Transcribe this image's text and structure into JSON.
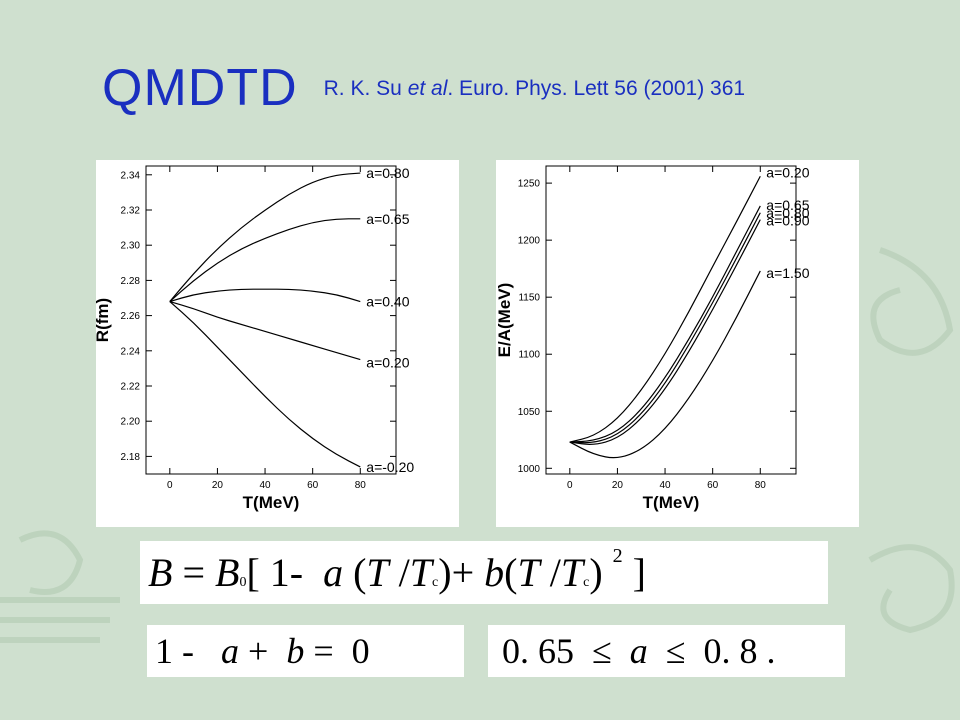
{
  "slide": {
    "title": "QMDTD",
    "reference": {
      "authors": "R. K. Su",
      "etal": "et al",
      "journal": ". Euro. Phys. Lett 56 (2001) 361"
    }
  },
  "chart_data": [
    {
      "type": "line",
      "xlabel": "T(MeV)",
      "ylabel": "R(fm)",
      "xlim": [
        -10,
        95
      ],
      "ylim": [
        2.17,
        2.345
      ],
      "xticks": [
        0,
        20,
        40,
        60,
        80
      ],
      "yticks": [
        2.18,
        2.2,
        2.22,
        2.24,
        2.26,
        2.28,
        2.3,
        2.32,
        2.34
      ],
      "grid": false,
      "legend": "inline labels at right end of curves",
      "series": [
        {
          "name": "a=0.80",
          "x": [
            0,
            10,
            20,
            30,
            40,
            50,
            60,
            70,
            80
          ],
          "y": [
            2.268,
            2.284,
            2.298,
            2.31,
            2.32,
            2.329,
            2.336,
            2.34,
            2.341
          ]
        },
        {
          "name": "a=0.65",
          "x": [
            0,
            10,
            20,
            30,
            40,
            50,
            60,
            70,
            80
          ],
          "y": [
            2.268,
            2.28,
            2.29,
            2.298,
            2.304,
            2.309,
            2.313,
            2.315,
            2.315
          ]
        },
        {
          "name": "a=0.40",
          "x": [
            0,
            10,
            20,
            30,
            40,
            50,
            60,
            70,
            80
          ],
          "y": [
            2.268,
            2.272,
            2.274,
            2.275,
            2.275,
            2.275,
            2.274,
            2.272,
            2.268
          ]
        },
        {
          "name": "a=0.20",
          "x": [
            0,
            10,
            20,
            30,
            40,
            50,
            60,
            70,
            80
          ],
          "y": [
            2.268,
            2.264,
            2.259,
            2.255,
            2.251,
            2.247,
            2.243,
            2.239,
            2.235
          ]
        },
        {
          "name": "a=-0.20",
          "x": [
            0,
            10,
            20,
            30,
            40,
            50,
            60,
            70,
            80
          ],
          "y": [
            2.268,
            2.256,
            2.242,
            2.228,
            2.214,
            2.201,
            2.19,
            2.181,
            2.174
          ]
        }
      ]
    },
    {
      "type": "line",
      "xlabel": "T(MeV)",
      "ylabel": "E/A(MeV)",
      "xlim": [
        -10,
        95
      ],
      "ylim": [
        995,
        1265
      ],
      "xticks": [
        0,
        20,
        40,
        60,
        80
      ],
      "yticks": [
        1000,
        1050,
        1100,
        1150,
        1200,
        1250
      ],
      "grid": false,
      "legend": "inline labels at right end of curves",
      "series": [
        {
          "name": "a=0.20",
          "x": [
            0,
            10,
            20,
            30,
            40,
            50,
            60,
            70,
            80
          ],
          "y": [
            1023,
            1028,
            1043,
            1068,
            1100,
            1137,
            1177,
            1216,
            1256
          ]
        },
        {
          "name": "a=0.65",
          "x": [
            0,
            10,
            20,
            30,
            40,
            50,
            60,
            70,
            80
          ],
          "y": [
            1023,
            1024,
            1032,
            1051,
            1079,
            1113,
            1150,
            1190,
            1230
          ]
        },
        {
          "name": "a=0.80",
          "x": [
            0,
            10,
            20,
            30,
            40,
            50,
            60,
            70,
            80
          ],
          "y": [
            1023,
            1022,
            1029,
            1047,
            1074,
            1108,
            1145,
            1184,
            1224
          ]
        },
        {
          "name": "a=0.90",
          "x": [
            0,
            10,
            20,
            30,
            40,
            50,
            60,
            70,
            80
          ],
          "y": [
            1023,
            1020,
            1026,
            1043,
            1069,
            1102,
            1139,
            1178,
            1218
          ]
        },
        {
          "name": "a=1.50",
          "x": [
            0,
            10,
            20,
            30,
            40,
            50,
            60,
            70,
            80
          ],
          "y": [
            1023,
            1012,
            1008,
            1016,
            1034,
            1061,
            1094,
            1132,
            1173
          ]
        }
      ]
    }
  ],
  "formula": {
    "B": "B",
    "eq": "=",
    "B0": "B",
    "sub0": "0",
    "lbr": "[",
    "one": "1-",
    "a": "a",
    "lp1": "(",
    "T1": "T",
    "slash1": "/",
    "Tc1": "T",
    "subc1": "c",
    "rp1": ")+",
    "b": "b",
    "lp2": "(",
    "T2": "T",
    "slash2": "/",
    "Tc2": "T",
    "subc2": "c",
    "rp2": ")",
    "pow": "2",
    "rbr": "]"
  },
  "constraint": {
    "one": "1 -",
    "a": "a",
    "plus": "+",
    "b": "b",
    "eq": "=",
    "zero": "0"
  },
  "range": {
    "low": "0. 65",
    "le1": "≤",
    "a": "a",
    "le2": "≤",
    "high": "0. 8 ."
  }
}
